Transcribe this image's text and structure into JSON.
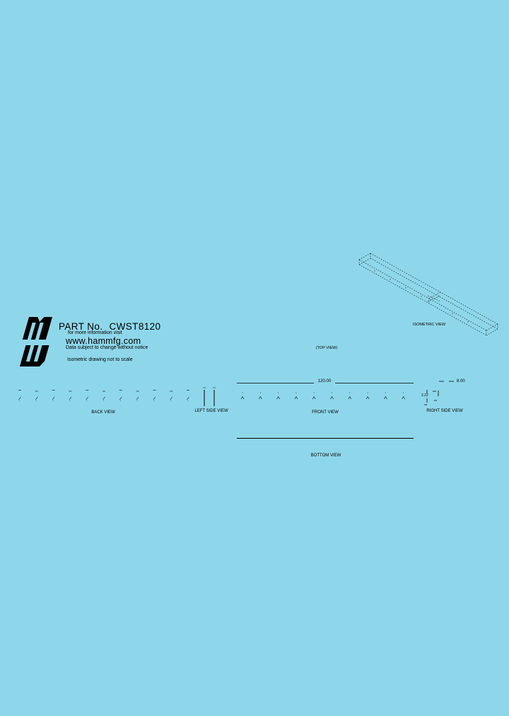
{
  "page": {
    "background": "#8ed7ea",
    "ink": "#000000"
  },
  "header": {
    "logo": "hammond-mw-logo",
    "part_label": "PART No.",
    "part_number": "CWST8120",
    "info_line": "for more information visit",
    "website": "www.hammfg.com",
    "disclaimer": "Data subject to change without notice",
    "iso_note": "Isometric drawing not to scale"
  },
  "views": {
    "isometric": {
      "label": "ISOMETRIC VIEW"
    },
    "top": {
      "label": "(TOP VIEW)"
    },
    "back": {
      "label": "BACK VIEW",
      "tick_count": 11
    },
    "left": {
      "label": "LEFT SIDE VIEW"
    },
    "front": {
      "label": "FRONT VIEW",
      "tick_count": 10,
      "dim_length": "120.00"
    },
    "right": {
      "label": "RIGHT SIDE VIEW",
      "dim_width": "8.00",
      "dim_height": "2.22"
    },
    "bottom": {
      "label": "BOTTOM VIEW"
    }
  }
}
